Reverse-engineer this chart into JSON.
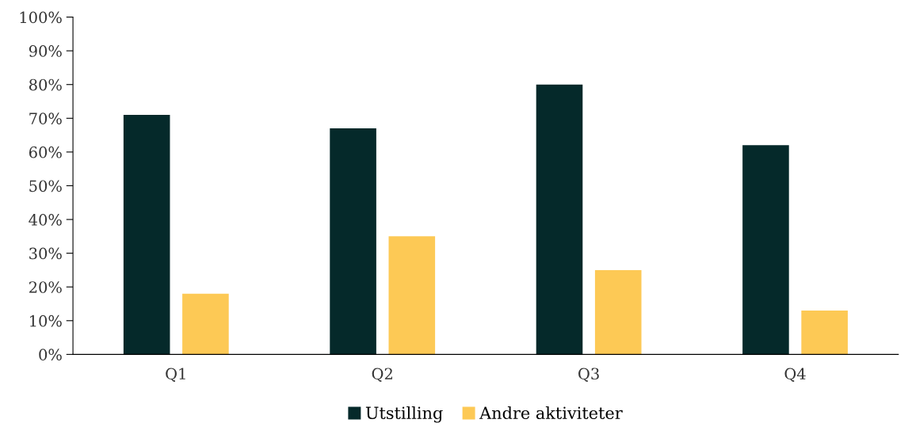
{
  "chart_data": {
    "type": "bar",
    "categories": [
      "Q1",
      "Q2",
      "Q3",
      "Q4"
    ],
    "series": [
      {
        "name": "Utstilling",
        "color": "#05292a",
        "values": [
          71,
          67,
          80,
          62
        ]
      },
      {
        "name": "Andre aktiviteter",
        "color": "#fdc955",
        "values": [
          18,
          35,
          25,
          13
        ]
      }
    ],
    "ylim": [
      0,
      100
    ],
    "yticks": [
      {
        "value": 0,
        "label": "0%"
      },
      {
        "value": 10,
        "label": "10%"
      },
      {
        "value": 20,
        "label": "20%"
      },
      {
        "value": 30,
        "label": "30%"
      },
      {
        "value": 40,
        "label": "40%"
      },
      {
        "value": 50,
        "label": "50%"
      },
      {
        "value": 60,
        "label": "60%"
      },
      {
        "value": 70,
        "label": "70%"
      },
      {
        "value": 80,
        "label": "80%"
      },
      {
        "value": 90,
        "label": "90%"
      },
      {
        "value": 100,
        "label": "100%"
      }
    ],
    "grid": false,
    "legend": "bottom"
  }
}
